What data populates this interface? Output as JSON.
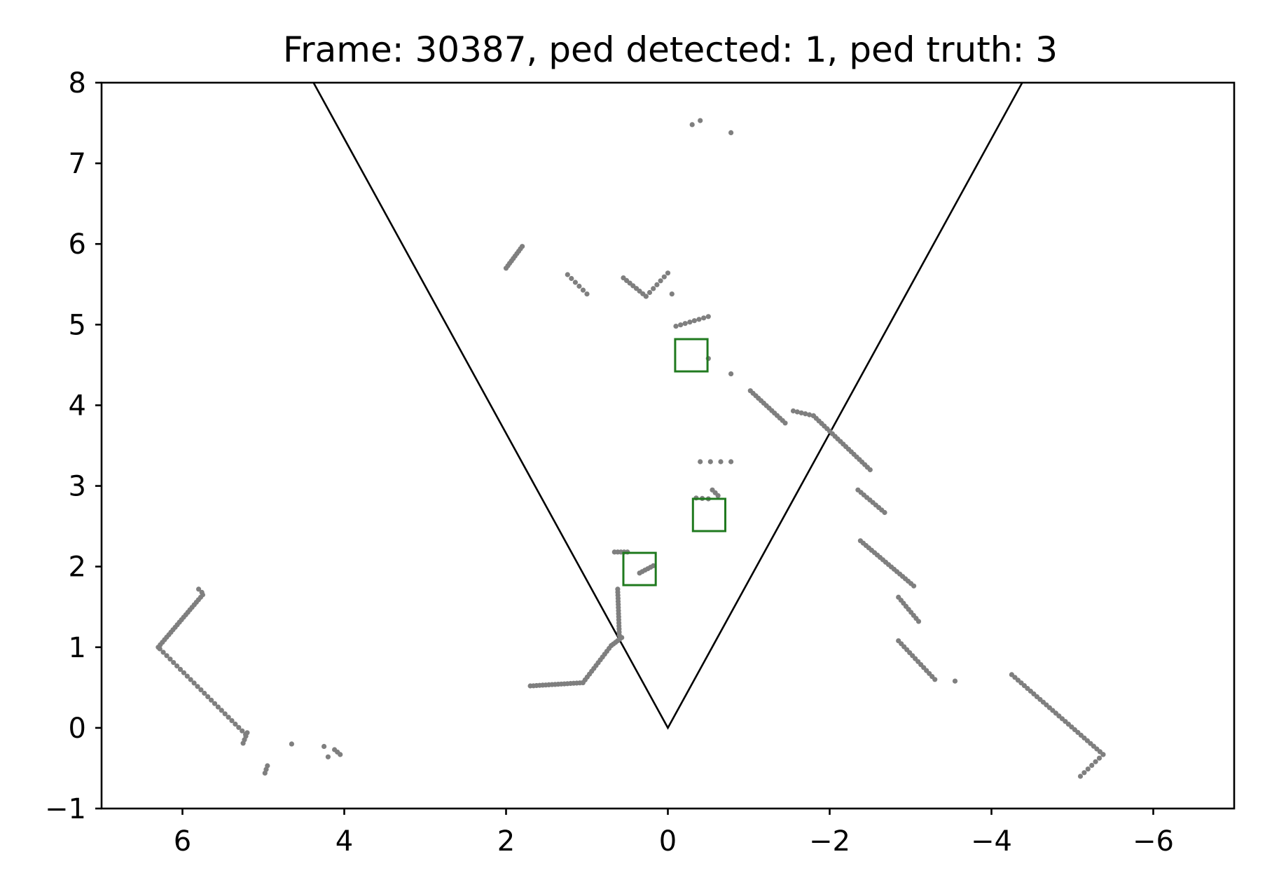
{
  "chart_data": {
    "type": "scatter",
    "title": "Frame: 30387, ped detected: 1, ped truth: 3",
    "xlabel": "",
    "ylabel": "",
    "xlim": [
      7,
      -7
    ],
    "ylim": [
      -1,
      8
    ],
    "x_inverted": true,
    "grid": false,
    "x_ticks": [
      6,
      4,
      2,
      0,
      -2,
      -4,
      -6
    ],
    "x_tick_labels": [
      "6",
      "4",
      "2",
      "0",
      "−2",
      "−4",
      "−6"
    ],
    "y_ticks": [
      8,
      7,
      6,
      5,
      4,
      3,
      2,
      1,
      0,
      -1
    ],
    "y_tick_labels": [
      "8",
      "7",
      "6",
      "5",
      "4",
      "3",
      "2",
      "1",
      "0",
      "−1"
    ],
    "colors": {
      "points": "#7f7f7f",
      "boxes": "#207a1f",
      "fov": "#000000"
    },
    "field_of_view": {
      "apex": [
        0,
        0
      ],
      "left_end": [
        4.38,
        8
      ],
      "right_end": [
        -4.38,
        8
      ]
    },
    "detection_boxes": [
      {
        "center": [
          -0.29,
          4.62
        ],
        "size": 0.4
      },
      {
        "center": [
          -0.51,
          2.64
        ],
        "size": 0.4
      },
      {
        "center": [
          0.35,
          1.97
        ],
        "size": 0.4
      }
    ],
    "point_segments": [
      {
        "from": [
          6.3,
          1.0
        ],
        "to": [
          5.75,
          1.65
        ],
        "n": 22
      },
      {
        "from": [
          5.8,
          1.72
        ],
        "to": [
          5.76,
          1.68
        ],
        "n": 2
      },
      {
        "from": [
          6.28,
          0.98
        ],
        "to": [
          5.22,
          -0.08
        ],
        "n": 26
      },
      {
        "from": [
          5.2,
          -0.06
        ],
        "to": [
          5.25,
          -0.19
        ],
        "n": 4
      },
      {
        "from": [
          4.95,
          -0.47
        ],
        "to": [
          4.98,
          -0.56
        ],
        "n": 3
      },
      {
        "from": [
          4.65,
          -0.2
        ],
        "to": [
          4.65,
          -0.2
        ],
        "n": 1
      },
      {
        "from": [
          4.25,
          -0.23
        ],
        "to": [
          4.2,
          -0.36
        ],
        "n": 2
      },
      {
        "from": [
          4.12,
          -0.27
        ],
        "to": [
          4.05,
          -0.33
        ],
        "n": 3
      },
      {
        "from": [
          1.7,
          0.52
        ],
        "to": [
          1.05,
          0.56
        ],
        "n": 18
      },
      {
        "from": [
          1.05,
          0.56
        ],
        "to": [
          0.7,
          1.02
        ],
        "n": 14
      },
      {
        "from": [
          0.7,
          1.02
        ],
        "to": [
          0.57,
          1.12
        ],
        "n": 6
      },
      {
        "from": [
          0.6,
          1.15
        ],
        "to": [
          0.62,
          1.72
        ],
        "n": 16
      },
      {
        "from": [
          0.66,
          2.18
        ],
        "to": [
          0.5,
          2.18
        ],
        "n": 5
      },
      {
        "from": [
          0.35,
          1.92
        ],
        "to": [
          0.18,
          2.01
        ],
        "n": 6
      },
      {
        "from": [
          2.0,
          5.7
        ],
        "to": [
          1.8,
          5.97
        ],
        "n": 10
      },
      {
        "from": [
          1.24,
          5.62
        ],
        "to": [
          1.0,
          5.38
        ],
        "n": 6
      },
      {
        "from": [
          0.55,
          5.58
        ],
        "to": [
          0.27,
          5.35
        ],
        "n": 8
      },
      {
        "from": [
          0.27,
          5.35
        ],
        "to": [
          0.0,
          5.64
        ],
        "n": 7
      },
      {
        "from": [
          -0.05,
          5.38
        ],
        "to": [
          -0.05,
          5.38
        ],
        "n": 1
      },
      {
        "from": [
          -0.1,
          4.98
        ],
        "to": [
          -0.5,
          5.1
        ],
        "n": 8
      },
      {
        "from": [
          -0.5,
          4.58
        ],
        "to": [
          -0.5,
          4.58
        ],
        "n": 1
      },
      {
        "from": [
          -0.78,
          4.39
        ],
        "to": [
          -0.78,
          4.39
        ],
        "n": 1
      },
      {
        "from": [
          -0.3,
          7.48
        ],
        "to": [
          -0.4,
          7.53
        ],
        "n": 2
      },
      {
        "from": [
          -0.78,
          7.38
        ],
        "to": [
          -0.78,
          7.38
        ],
        "n": 1
      },
      {
        "from": [
          -1.02,
          4.18
        ],
        "to": [
          -1.45,
          3.78
        ],
        "n": 14
      },
      {
        "from": [
          -1.55,
          3.93
        ],
        "to": [
          -1.8,
          3.87
        ],
        "n": 6
      },
      {
        "from": [
          -1.8,
          3.87
        ],
        "to": [
          -2.5,
          3.2
        ],
        "n": 22
      },
      {
        "from": [
          -2.35,
          2.95
        ],
        "to": [
          -2.68,
          2.67
        ],
        "n": 10
      },
      {
        "from": [
          -2.38,
          2.32
        ],
        "to": [
          -3.04,
          1.76
        ],
        "n": 20
      },
      {
        "from": [
          -2.85,
          1.62
        ],
        "to": [
          -3.1,
          1.32
        ],
        "n": 9
      },
      {
        "from": [
          -2.85,
          1.08
        ],
        "to": [
          -3.3,
          0.6
        ],
        "n": 14
      },
      {
        "from": [
          -3.55,
          0.58
        ],
        "to": [
          -3.55,
          0.58
        ],
        "n": 1
      },
      {
        "from": [
          -0.4,
          3.3
        ],
        "to": [
          -0.78,
          3.3
        ],
        "n": 4
      },
      {
        "from": [
          -0.55,
          2.95
        ],
        "to": [
          -0.62,
          2.88
        ],
        "n": 3
      },
      {
        "from": [
          -0.35,
          2.85
        ],
        "to": [
          -0.5,
          2.84
        ],
        "n": 3
      },
      {
        "from": [
          -4.25,
          0.66
        ],
        "to": [
          -5.38,
          -0.33
        ],
        "n": 30
      },
      {
        "from": [
          -5.38,
          -0.33
        ],
        "to": [
          -5.1,
          -0.6
        ],
        "n": 7
      }
    ]
  }
}
